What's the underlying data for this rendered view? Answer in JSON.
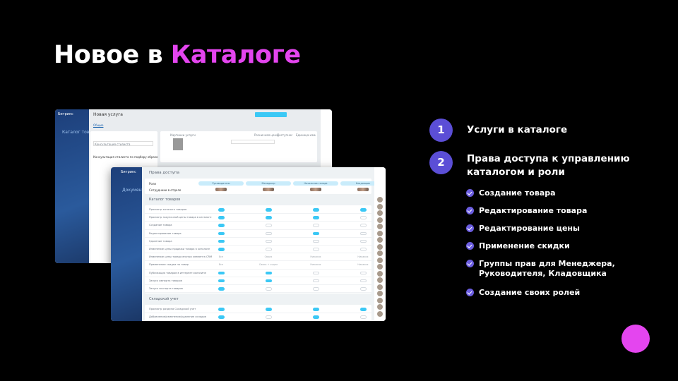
{
  "title": {
    "part1": "Новое в ",
    "part2": "Каталоге",
    "accent_color": "#e445ef"
  },
  "list": [
    {
      "num": "1",
      "label": "Услуги в каталоге"
    },
    {
      "num": "2",
      "label": "Права доступа к управлению каталогом и роли"
    }
  ],
  "bullets": [
    "Создание товара",
    "Редактирование товара",
    "Редактирование цены",
    "Применение скидки",
    "Группы прав для Менеджера, Руководителя, Кладовщика",
    "Создание своих ролей"
  ],
  "back_window": {
    "app": "Битрикс",
    "page_title": "Новая услуга",
    "tab": "Общие",
    "section": "Каталог товаров",
    "name_value": "Консультация стилиста",
    "description": "Консультация стилиста по подбору образа",
    "col_headers": [
      "Картинки услуги",
      "Розничная цена",
      "Доступность",
      "Единица измерения"
    ]
  },
  "front_window": {
    "app": "Битрикс",
    "bg_title": "Документы",
    "title": "Права доступа",
    "roles_label": "Роли",
    "roles": [
      "Руководитель",
      "Менеджер",
      "Начальник склада",
      "Кладовщик"
    ],
    "employees_label": "Сотрудники в отделе",
    "sections": [
      {
        "title": "Каталог товаров",
        "rows": [
          {
            "label": "Просмотр каталога товаров",
            "values": [
              1,
              1,
              1,
              1
            ]
          },
          {
            "label": "Просмотр закупочной цены товара в каталоге",
            "values": [
              1,
              1,
              1,
              0
            ]
          },
          {
            "label": "Создание товара",
            "values": [
              1,
              0,
              0,
              0
            ]
          },
          {
            "label": "Редактирование товара",
            "values": [
              1,
              0,
              1,
              0
            ]
          },
          {
            "label": "Удаление товара",
            "values": [
              1,
              0,
              0,
              0
            ]
          },
          {
            "label": "Изменение цены продажи товара в каталоге",
            "values": [
              1,
              0,
              0,
              0
            ]
          },
          {
            "label": "Изменение цены товара внутри элемента CRM",
            "values": [
              "Все",
              "Своих",
              "Никаких",
              "Никаких"
            ]
          },
          {
            "label": "Применение скидки на товар",
            "values": [
              "Все",
              "Своих + отдел",
              "Никаких",
              "Никаких"
            ]
          },
          {
            "label": "Публикация товаров в интернет-магазине",
            "values": [
              1,
              1,
              0,
              0
            ]
          },
          {
            "label": "Запуск импорта товаров",
            "values": [
              1,
              1,
              0,
              0
            ]
          },
          {
            "label": "Запуск экспорта товаров",
            "values": [
              1,
              0,
              0,
              0
            ]
          }
        ]
      },
      {
        "title": "Складской учет",
        "rows": [
          {
            "label": "Просмотр раздела Складской учет",
            "values": [
              1,
              1,
              1,
              1
            ]
          },
          {
            "label": "Добавление/изменение/удаление складов",
            "values": [
              1,
              0,
              1,
              0
            ]
          }
        ]
      }
    ]
  }
}
